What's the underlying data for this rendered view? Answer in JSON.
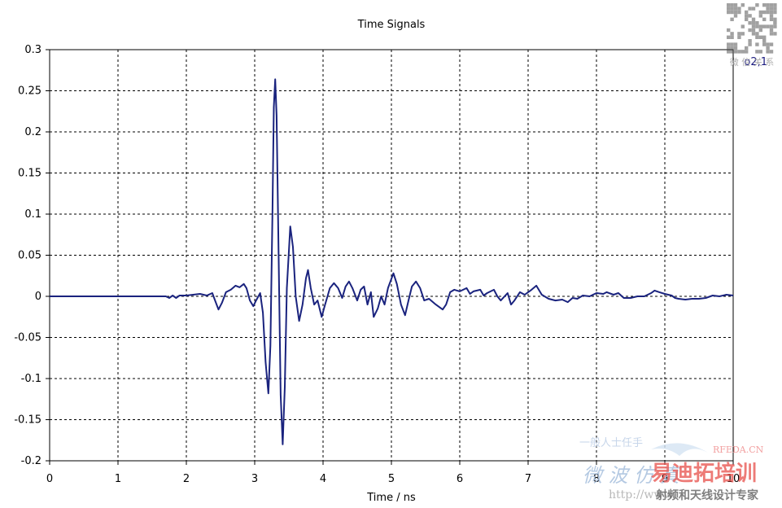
{
  "chart_data": {
    "type": "line",
    "title": "Time Signals",
    "xlabel": "Time / ns",
    "ylabel": "",
    "xlim": [
      0,
      10
    ],
    "ylim": [
      -0.2,
      0.3
    ],
    "xticks": [
      "0",
      "1",
      "2",
      "3",
      "4",
      "5",
      "6",
      "7",
      "8",
      "9",
      "10"
    ],
    "yticks": [
      "0.3",
      "0.25",
      "0.2",
      "0.15",
      "0.1",
      "0.05",
      "0",
      "-0.05",
      "-0.1",
      "-0.15",
      "-0.2"
    ],
    "grid": true,
    "legend_position": "top-right",
    "series": [
      {
        "name": "o2,1",
        "color": "#1a237e",
        "points": [
          [
            0,
            0
          ],
          [
            1.7,
            0
          ],
          [
            1.75,
            -0.002
          ],
          [
            1.8,
            0.001
          ],
          [
            1.85,
            -0.002
          ],
          [
            1.9,
            0.001
          ],
          [
            2.0,
            0.001
          ],
          [
            2.1,
            0.002
          ],
          [
            2.2,
            0.003
          ],
          [
            2.3,
            0.001
          ],
          [
            2.38,
            0.004
          ],
          [
            2.42,
            -0.005
          ],
          [
            2.47,
            -0.016
          ],
          [
            2.52,
            -0.008
          ],
          [
            2.58,
            0.005
          ],
          [
            2.65,
            0.008
          ],
          [
            2.72,
            0.013
          ],
          [
            2.78,
            0.011
          ],
          [
            2.84,
            0.015
          ],
          [
            2.88,
            0.01
          ],
          [
            2.93,
            -0.005
          ],
          [
            2.98,
            -0.012
          ],
          [
            3.02,
            -0.005
          ],
          [
            3.08,
            0.004
          ],
          [
            3.12,
            -0.02
          ],
          [
            3.16,
            -0.08
          ],
          [
            3.2,
            -0.118
          ],
          [
            3.23,
            -0.06
          ],
          [
            3.26,
            0.1
          ],
          [
            3.28,
            0.23
          ],
          [
            3.3,
            0.264
          ],
          [
            3.32,
            0.22
          ],
          [
            3.35,
            0.05
          ],
          [
            3.38,
            -0.12
          ],
          [
            3.41,
            -0.18
          ],
          [
            3.44,
            -0.11
          ],
          [
            3.47,
            0.01
          ],
          [
            3.52,
            0.085
          ],
          [
            3.56,
            0.06
          ],
          [
            3.6,
            0.0
          ],
          [
            3.65,
            -0.03
          ],
          [
            3.7,
            -0.01
          ],
          [
            3.75,
            0.022
          ],
          [
            3.78,
            0.032
          ],
          [
            3.82,
            0.01
          ],
          [
            3.87,
            -0.01
          ],
          [
            3.92,
            -0.005
          ],
          [
            3.98,
            -0.025
          ],
          [
            4.03,
            -0.01
          ],
          [
            4.1,
            0.01
          ],
          [
            4.16,
            0.016
          ],
          [
            4.22,
            0.01
          ],
          [
            4.28,
            -0.002
          ],
          [
            4.33,
            0.012
          ],
          [
            4.38,
            0.018
          ],
          [
            4.43,
            0.01
          ],
          [
            4.5,
            -0.005
          ],
          [
            4.55,
            0.008
          ],
          [
            4.6,
            0.012
          ],
          [
            4.65,
            -0.01
          ],
          [
            4.7,
            0.005
          ],
          [
            4.74,
            -0.025
          ],
          [
            4.8,
            -0.015
          ],
          [
            4.85,
            0.0
          ],
          [
            4.9,
            -0.01
          ],
          [
            4.95,
            0.01
          ],
          [
            5.03,
            0.028
          ],
          [
            5.08,
            0.015
          ],
          [
            5.14,
            -0.01
          ],
          [
            5.2,
            -0.023
          ],
          [
            5.25,
            -0.005
          ],
          [
            5.3,
            0.012
          ],
          [
            5.36,
            0.018
          ],
          [
            5.42,
            0.01
          ],
          [
            5.48,
            -0.005
          ],
          [
            5.55,
            -0.003
          ],
          [
            5.65,
            -0.01
          ],
          [
            5.75,
            -0.016
          ],
          [
            5.8,
            -0.01
          ],
          [
            5.86,
            0.005
          ],
          [
            5.92,
            0.008
          ],
          [
            6.0,
            0.006
          ],
          [
            6.1,
            0.01
          ],
          [
            6.15,
            0.003
          ],
          [
            6.2,
            0.006
          ],
          [
            6.3,
            0.008
          ],
          [
            6.35,
            0.001
          ],
          [
            6.4,
            0.004
          ],
          [
            6.5,
            0.008
          ],
          [
            6.55,
            0.0
          ],
          [
            6.6,
            -0.005
          ],
          [
            6.7,
            0.004
          ],
          [
            6.75,
            -0.01
          ],
          [
            6.8,
            -0.005
          ],
          [
            6.88,
            0.005
          ],
          [
            6.95,
            0.002
          ],
          [
            7.05,
            0.008
          ],
          [
            7.12,
            0.013
          ],
          [
            7.2,
            0.002
          ],
          [
            7.3,
            -0.003
          ],
          [
            7.4,
            -0.005
          ],
          [
            7.5,
            -0.004
          ],
          [
            7.58,
            -0.007
          ],
          [
            7.65,
            -0.002
          ],
          [
            7.72,
            -0.003
          ],
          [
            7.8,
            0.001
          ],
          [
            7.9,
            0.0
          ],
          [
            8.0,
            0.004
          ],
          [
            8.1,
            0.003
          ],
          [
            8.15,
            0.005
          ],
          [
            8.25,
            0.002
          ],
          [
            8.32,
            0.004
          ],
          [
            8.4,
            -0.002
          ],
          [
            8.5,
            -0.002
          ],
          [
            8.6,
            0.0
          ],
          [
            8.7,
            0.0
          ],
          [
            8.8,
            0.004
          ],
          [
            8.85,
            0.007
          ],
          [
            8.92,
            0.005
          ],
          [
            9.0,
            0.003
          ],
          [
            9.1,
            0.001
          ],
          [
            9.15,
            -0.002
          ],
          [
            9.2,
            -0.003
          ],
          [
            9.3,
            -0.004
          ],
          [
            9.4,
            -0.003
          ],
          [
            9.5,
            -0.003
          ],
          [
            9.6,
            -0.002
          ],
          [
            9.7,
            0.001
          ],
          [
            9.8,
            0.0
          ],
          [
            9.9,
            0.002
          ],
          [
            10.0,
            0.001
          ]
        ]
      }
    ]
  },
  "watermarks": {
    "qr_caption": "微 信 关 系",
    "site_small": "RFEDA.CN",
    "logo_a": "微 波 仿 真",
    "logo_b": "易迪拓培训",
    "url": "http://www.",
    "slogan": "射频和天线设计专家",
    "faint_text": "一般人士任手"
  }
}
